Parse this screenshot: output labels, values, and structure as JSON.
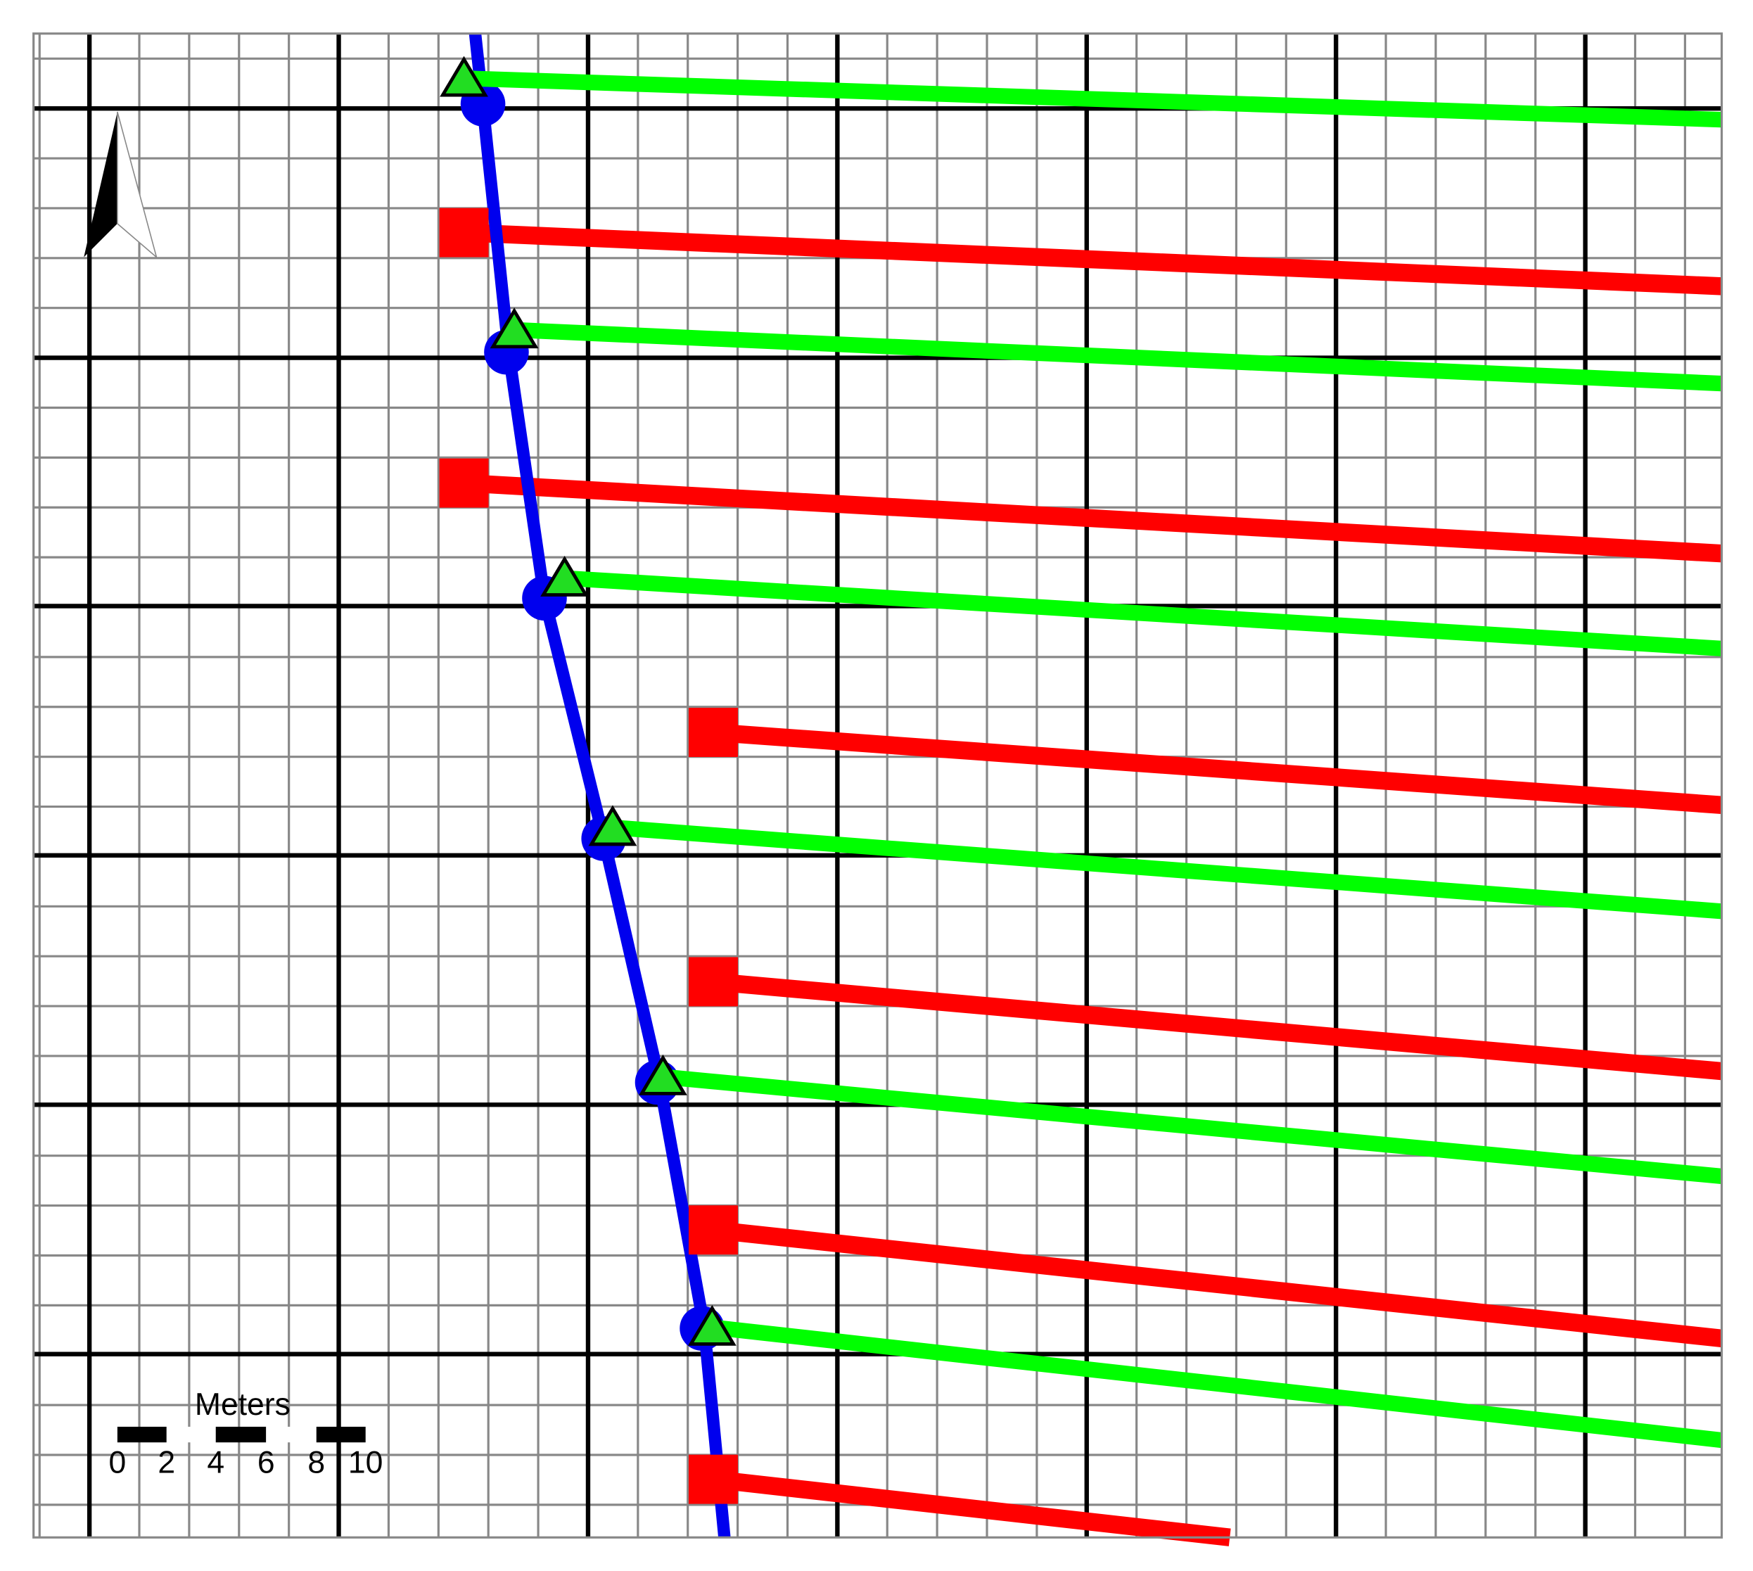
{
  "scale_bar": {
    "title": "Meters",
    "labels": [
      "0",
      "2",
      "4",
      "6",
      "8",
      "10"
    ]
  }
}
